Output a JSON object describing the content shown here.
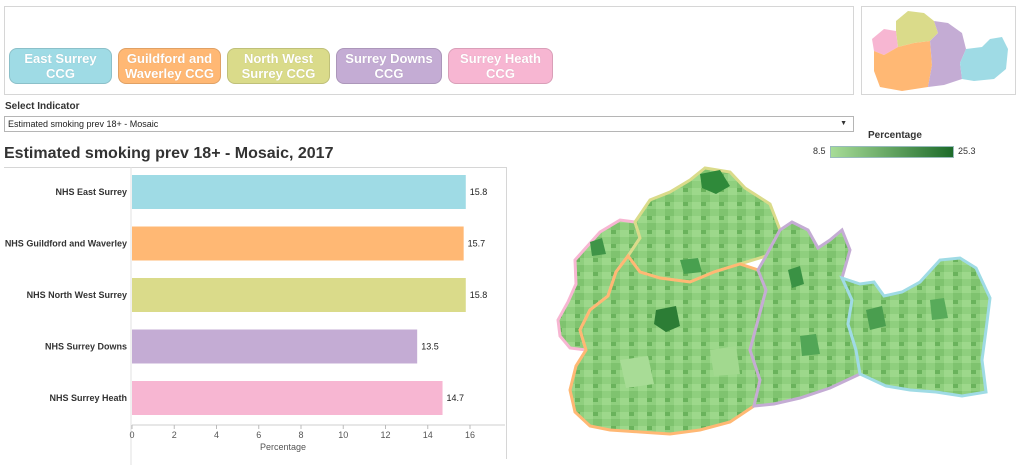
{
  "ccg_buttons": [
    {
      "label_1": "East Surrey",
      "label_2": "CCG",
      "color": "#9fdbe5"
    },
    {
      "label_1": "Guildford and",
      "label_2": "Waverley CCG",
      "color": "#ffb874"
    },
    {
      "label_1": "North West",
      "label_2": "Surrey CCG",
      "color": "#dadb8a"
    },
    {
      "label_1": "Surrey Downs",
      "label_2": "CCG",
      "color": "#c4acd4"
    },
    {
      "label_1": "Surrey Heath",
      "label_2": "CCG",
      "color": "#f7b6d2"
    }
  ],
  "indicator": {
    "label": "Select Indicator",
    "selected": "Estimated smoking prev 18+ - Mosaic",
    "arrow": "▼"
  },
  "legend": {
    "title": "Percentage",
    "min": "8.5",
    "max": "25.3",
    "color_low": "#a7dc97",
    "color_high": "#1d6b2a"
  },
  "chart_data": {
    "type": "bar",
    "orientation": "horizontal",
    "title": "Estimated smoking prev 18+ - Mosaic, 2017",
    "categories": [
      "NHS East Surrey",
      "NHS Guildford and Waverley",
      "NHS North West Surrey",
      "NHS Surrey Downs",
      "NHS Surrey Heath"
    ],
    "values": [
      15.8,
      15.7,
      15.8,
      13.5,
      14.7
    ],
    "value_labels": [
      "15.8",
      "15.7",
      "15.8",
      "13.5",
      "14.7"
    ],
    "colors": [
      "#9fdbe5",
      "#ffb874",
      "#dadb8a",
      "#c4acd4",
      "#f7b6d2"
    ],
    "xlabel": "Percentage",
    "xlim": [
      0,
      16
    ],
    "xticks": [
      "0",
      "2",
      "4",
      "6",
      "8",
      "10",
      "12",
      "14",
      "16"
    ],
    "grid": false
  }
}
